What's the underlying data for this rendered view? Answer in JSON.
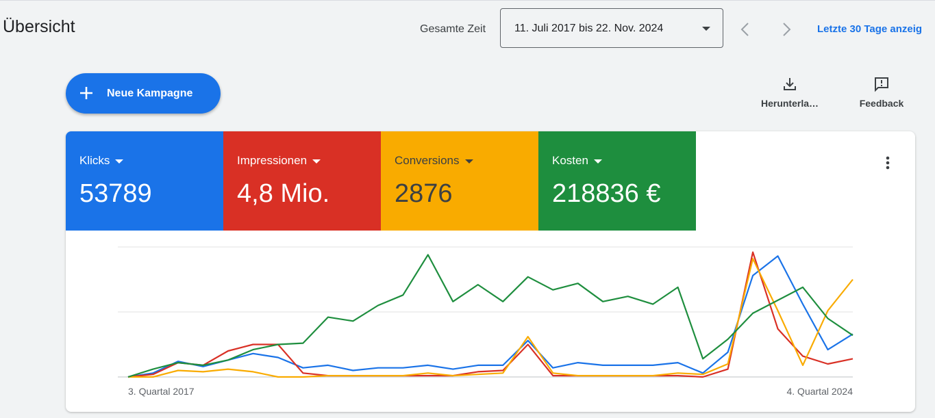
{
  "header": {
    "title": "Übersicht",
    "range_label": "Gesamte Zeit",
    "date_range": "11. Juli 2017 bis 22. Nov. 2024",
    "link": "Letzte 30 Tage anzeig"
  },
  "toolbar": {
    "new_campaign": "Neue Kampagne",
    "download": "Herunterla…",
    "feedback": "Feedback"
  },
  "chart_data": {
    "type": "line",
    "categories": [
      "3. Quartal 2017",
      null,
      null,
      null,
      null,
      null,
      null,
      null,
      null,
      null,
      null,
      null,
      null,
      null,
      null,
      null,
      null,
      null,
      null,
      null,
      null,
      null,
      null,
      null,
      null,
      null,
      null,
      null,
      null,
      "4. Quartal 2024"
    ],
    "ylim": [
      0,
      100
    ],
    "grid_lines": [
      0,
      50,
      100
    ],
    "series": [
      {
        "name": "Klicks",
        "total_label": "53789",
        "color": "#1a73e8",
        "text_color": "#ffffff",
        "values": [
          0,
          3,
          12,
          8,
          13,
          18,
          15,
          7,
          9,
          5,
          7,
          7,
          9,
          6,
          9,
          9,
          28,
          7,
          11,
          9,
          9,
          9,
          11,
          3,
          19,
          78,
          93,
          56,
          21,
          33
        ]
      },
      {
        "name": "Impressionen",
        "total_label": "4,8 Mio.",
        "color": "#d93025",
        "text_color": "#ffffff",
        "values": [
          0,
          2,
          11,
          9,
          20,
          25,
          25,
          3,
          1,
          1,
          1,
          1,
          1,
          1,
          4,
          5,
          25,
          1,
          1,
          1,
          1,
          1,
          1,
          0,
          6,
          96,
          37,
          16,
          10,
          14
        ]
      },
      {
        "name": "Conversions",
        "total_label": "2876",
        "color": "#f9ab00",
        "text_color": "#3c4043",
        "values": [
          0,
          0,
          5,
          4,
          6,
          4,
          0,
          0,
          1,
          1,
          1,
          1,
          3,
          1,
          2,
          3,
          31,
          3,
          1,
          1,
          1,
          1,
          3,
          2,
          10,
          91,
          51,
          9,
          51,
          75
        ]
      },
      {
        "name": "Kosten",
        "total_label": "218836 €",
        "color": "#1e8e3e",
        "text_color": "#ffffff",
        "values": [
          0,
          6,
          11,
          9,
          13,
          21,
          25,
          26,
          46,
          43,
          55,
          63,
          94,
          58,
          71,
          58,
          77,
          67,
          72,
          58,
          62,
          56,
          69,
          14,
          29,
          49,
          59,
          69,
          45,
          32
        ]
      }
    ]
  }
}
